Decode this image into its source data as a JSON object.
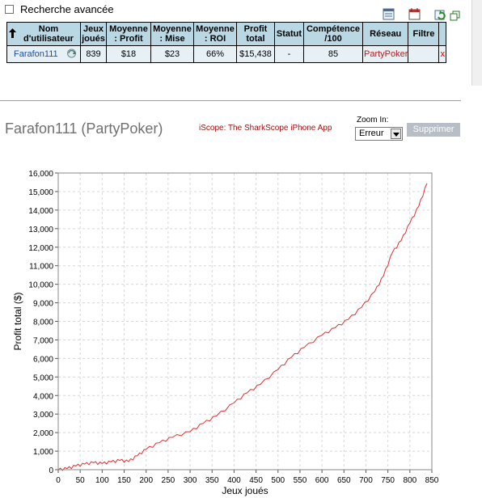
{
  "search": {
    "advanced_label": "Recherche avancée"
  },
  "toolbar_icons": [
    "export-icon",
    "calendar-icon",
    "refresh-icon",
    "popout-icon"
  ],
  "table": {
    "headers": {
      "username": "Nom d'utilisateur",
      "games": "Jeux joués",
      "avg_profit": "Moyenne : Profit",
      "avg_stake": "Moyenne : Mise",
      "avg_roi": "Moyenne : ROI",
      "total_profit": "Profit total",
      "status": "Statut",
      "skill": "Compétence /100",
      "network": "Réseau",
      "filter": "Filtre"
    },
    "row": {
      "username": "Farafon111",
      "games": "839",
      "avg_profit": "$18",
      "avg_stake": "$23",
      "avg_roi": "66%",
      "total_profit": "$15,438",
      "status": "-",
      "skill": "85",
      "network": "PartyPoker",
      "filter": "",
      "remove": "x"
    }
  },
  "chart_header": {
    "title": "Farafon111 (PartyPoker)",
    "iscope_link": "iScope: The SharkScope iPhone App",
    "zoom_label": "Zoom In:",
    "zoom_value": "Erreur",
    "delete_button": "Supprimer"
  },
  "chart_data": {
    "type": "line",
    "xlabel": "Jeux joués",
    "ylabel": "Profit total ($)",
    "xlim": [
      0,
      850
    ],
    "ylim": [
      0,
      16000
    ],
    "x_ticks": [
      0,
      50,
      100,
      150,
      200,
      250,
      300,
      350,
      400,
      450,
      500,
      550,
      600,
      650,
      700,
      750,
      800,
      850
    ],
    "y_ticks": [
      0,
      1000,
      2000,
      3000,
      4000,
      5000,
      6000,
      7000,
      8000,
      9000,
      10000,
      11000,
      12000,
      13000,
      14000,
      15000,
      16000
    ],
    "y_tick_labels": [
      "0",
      "1,000",
      "2,000",
      "3,000",
      "4,000",
      "5,000",
      "6,000",
      "7,000",
      "8,000",
      "9,000",
      "10,000",
      "11,000",
      "12,000",
      "13,000",
      "14,000",
      "15,000",
      "16,000"
    ],
    "grid": true,
    "line_color": "#e03030",
    "baseline_color": "#3333cc",
    "series": [
      {
        "x": [
          0,
          20,
          40,
          60,
          80,
          100,
          120,
          140,
          160,
          180,
          200,
          230,
          260,
          300,
          330,
          360,
          400,
          430,
          460,
          500,
          530,
          560,
          600,
          630,
          660,
          690,
          720,
          740,
          760,
          780,
          800,
          820,
          839
        ],
        "y": [
          0,
          60,
          200,
          300,
          380,
          330,
          420,
          500,
          440,
          750,
          1100,
          1450,
          1750,
          2050,
          2500,
          2900,
          3600,
          4150,
          4600,
          5400,
          6050,
          6600,
          7250,
          7650,
          8100,
          8750,
          9600,
          10450,
          11700,
          12350,
          13300,
          14200,
          15438
        ]
      }
    ]
  }
}
